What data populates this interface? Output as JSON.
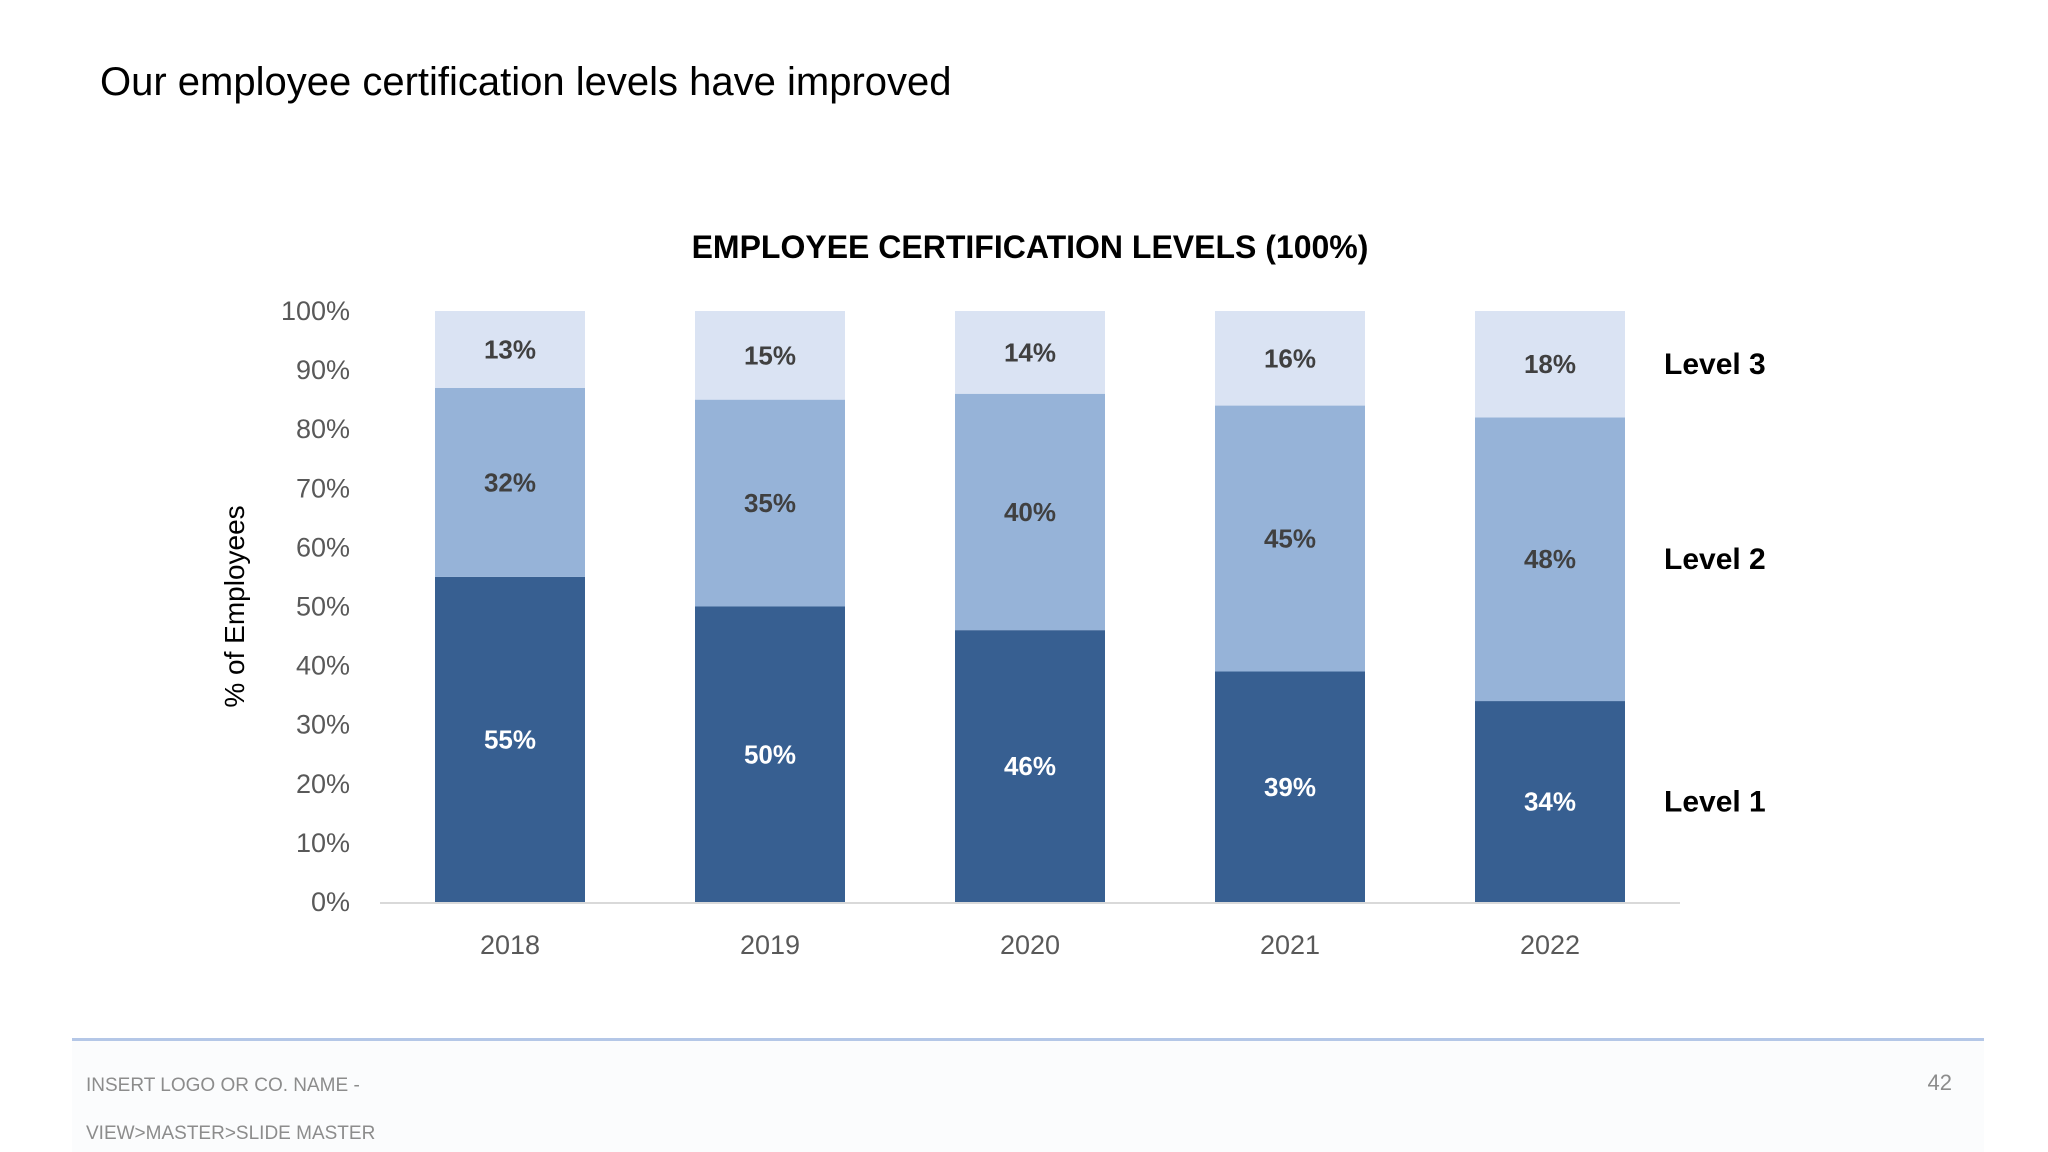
{
  "slide": {
    "title": "Our employee certification levels have improved",
    "footer_line1": "INSERT LOGO OR CO. NAME -",
    "footer_line2": "VIEW>MASTER>SLIDE MASTER",
    "page_number": "42"
  },
  "chart_data": {
    "type": "bar",
    "stacked": true,
    "title": "EMPLOYEE CERTIFICATION LEVELS (100%)",
    "xlabel": "",
    "ylabel": "% of Employees",
    "ylim": [
      0,
      100
    ],
    "yticks": [
      "0%",
      "10%",
      "20%",
      "30%",
      "40%",
      "50%",
      "60%",
      "70%",
      "80%",
      "90%",
      "100%"
    ],
    "categories": [
      "2018",
      "2019",
      "2020",
      "2021",
      "2022"
    ],
    "series": [
      {
        "name": "Level 1",
        "values": [
          55,
          50,
          46,
          39,
          34
        ],
        "labels": [
          "55%",
          "50%",
          "46%",
          "39%",
          "34%"
        ],
        "color": "#375f91",
        "label_color": "#ffffff"
      },
      {
        "name": "Level 2",
        "values": [
          32,
          35,
          40,
          45,
          48
        ],
        "labels": [
          "32%",
          "35%",
          "40%",
          "45%",
          "48%"
        ],
        "color": "#96b3d8",
        "label_color": "#404040"
      },
      {
        "name": "Level 3",
        "values": [
          13,
          15,
          14,
          16,
          18
        ],
        "labels": [
          "13%",
          "15%",
          "14%",
          "16%",
          "18%"
        ],
        "color": "#dae3f3",
        "label_color": "#404040"
      }
    ],
    "legend": "right, beside bars",
    "grid": false
  }
}
